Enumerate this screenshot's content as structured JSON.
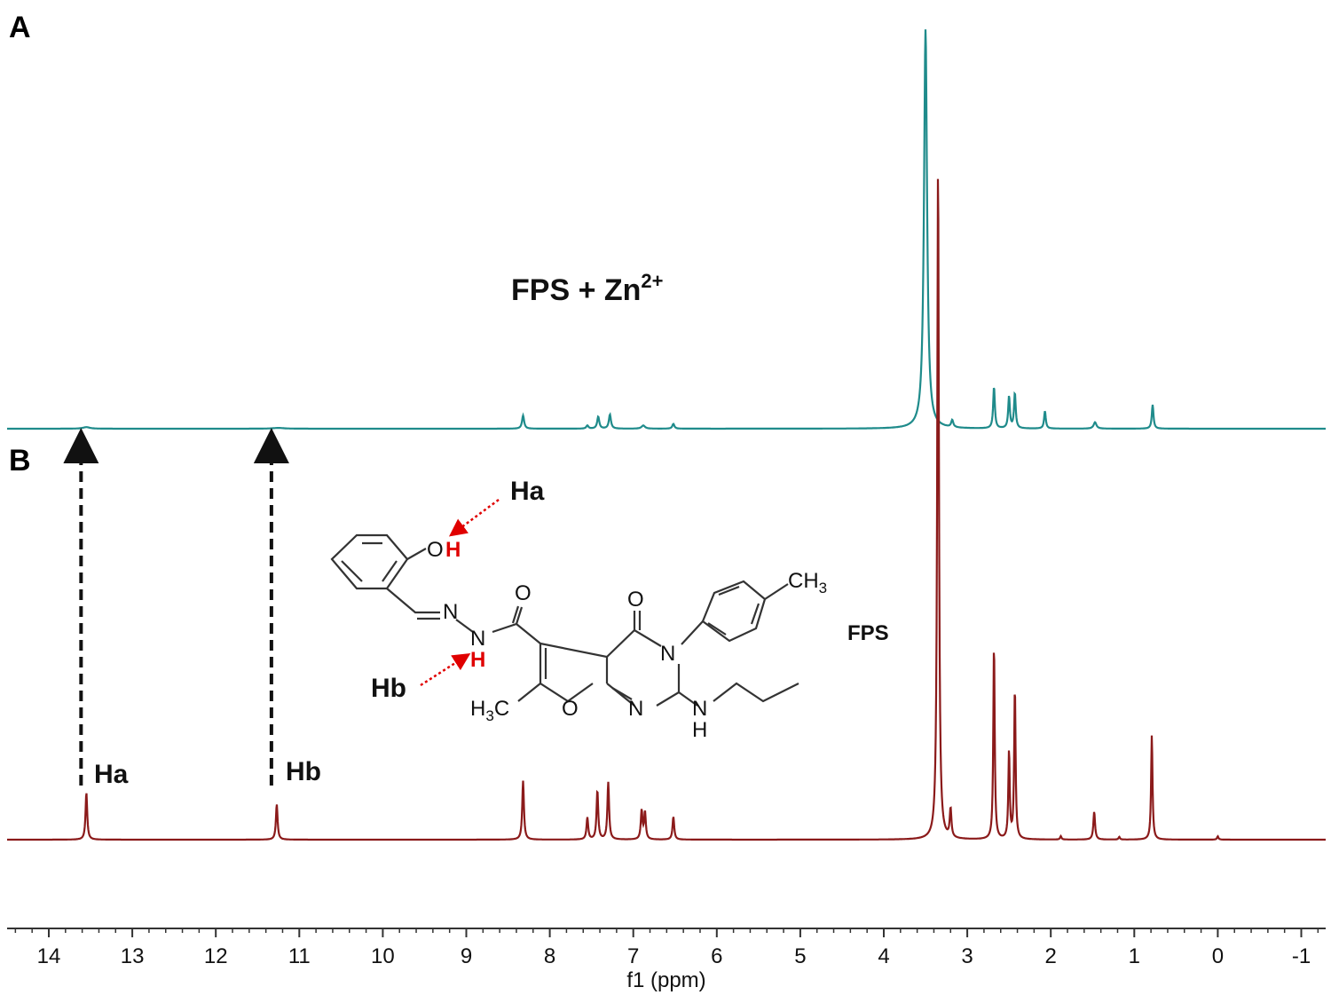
{
  "panels": [
    {
      "label": "A",
      "sample_main": "FPS + Zn",
      "sample_sup": "2+"
    },
    {
      "label": "B",
      "sample_label": "FPS"
    }
  ],
  "annotations": {
    "peak_ha": "Ha",
    "peak_hb": "Hb",
    "struct_ha": "Ha",
    "struct_hb": "Hb"
  },
  "structure_atoms": {
    "o_phenol": "O",
    "h_a": "H",
    "n_imine": "N",
    "n_amide": "N",
    "h_b": "H",
    "o_amide": "O",
    "o_pyrimidinone": "O",
    "n_ring_3": "N",
    "ch3_main": "CH",
    "ch3_sub": "3",
    "n_ring_1": "N",
    "o_furan": "O",
    "h3c_h": "H",
    "h3c_sub": "3",
    "h3c_c": "C",
    "nh_n": "N",
    "nh_h": "H"
  },
  "colors": {
    "spectrum_a": "#1f8b8b",
    "spectrum_b": "#8b1a1a",
    "red_highlight": "#e00000",
    "arrow": "#111111"
  },
  "chart_data": {
    "type": "line",
    "xlabel": "f1 (ppm)",
    "xlim": [
      14.5,
      -1.3
    ],
    "x_reversed": true,
    "xticks": [
      14,
      13,
      12,
      11,
      10,
      9,
      8,
      7,
      6,
      5,
      4,
      3,
      2,
      1,
      0,
      -1
    ],
    "xtick_labels": [
      "14",
      "13",
      "12",
      "11",
      "10",
      "9",
      "8",
      "7",
      "6",
      "5",
      "4",
      "3",
      "2",
      "1",
      "0",
      "-1"
    ],
    "minor_tick_step": 0.2,
    "grid": false,
    "y_axis_shown": false,
    "series": [
      {
        "panel": "A",
        "color": "#1f8b8b",
        "peaks": [
          {
            "ppm": 13.55,
            "height": 0.01,
            "width": 0.05
          },
          {
            "ppm": 11.25,
            "height": 0.005,
            "width": 0.08
          },
          {
            "ppm": 8.32,
            "height": 0.082,
            "width": 0.015
          },
          {
            "ppm": 7.55,
            "height": 0.02,
            "width": 0.015
          },
          {
            "ppm": 7.42,
            "height": 0.075,
            "width": 0.015
          },
          {
            "ppm": 7.28,
            "height": 0.088,
            "width": 0.015
          },
          {
            "ppm": 6.88,
            "height": 0.02,
            "width": 0.025
          },
          {
            "ppm": 6.52,
            "height": 0.03,
            "width": 0.015
          },
          {
            "ppm": 3.5,
            "height": 2.5,
            "width": 0.022
          },
          {
            "ppm": 3.18,
            "height": 0.045,
            "width": 0.015
          },
          {
            "ppm": 2.68,
            "height": 0.26,
            "width": 0.012
          },
          {
            "ppm": 2.5,
            "height": 0.2,
            "width": 0.012
          },
          {
            "ppm": 2.43,
            "height": 0.22,
            "width": 0.012
          },
          {
            "ppm": 2.07,
            "height": 0.11,
            "width": 0.012
          },
          {
            "ppm": 1.47,
            "height": 0.04,
            "width": 0.02
          },
          {
            "ppm": 0.78,
            "height": 0.15,
            "width": 0.012
          }
        ]
      },
      {
        "panel": "B",
        "color": "#8b1a1a",
        "peaks": [
          {
            "ppm": 13.55,
            "height": 0.14,
            "width": 0.012
          },
          {
            "ppm": 11.27,
            "height": 0.105,
            "width": 0.012
          },
          {
            "ppm": 8.32,
            "height": 0.175,
            "width": 0.012
          },
          {
            "ppm": 7.55,
            "height": 0.065,
            "width": 0.012
          },
          {
            "ppm": 7.43,
            "height": 0.145,
            "width": 0.012
          },
          {
            "ppm": 7.3,
            "height": 0.17,
            "width": 0.012
          },
          {
            "ppm": 6.9,
            "height": 0.085,
            "width": 0.012
          },
          {
            "ppm": 6.86,
            "height": 0.08,
            "width": 0.012
          },
          {
            "ppm": 6.52,
            "height": 0.068,
            "width": 0.012
          },
          {
            "ppm": 3.35,
            "height": 2.0,
            "width": 0.012
          },
          {
            "ppm": 3.2,
            "height": 0.085,
            "width": 0.012
          },
          {
            "ppm": 2.68,
            "height": 0.58,
            "width": 0.01
          },
          {
            "ppm": 2.5,
            "height": 0.26,
            "width": 0.01
          },
          {
            "ppm": 2.43,
            "height": 0.45,
            "width": 0.01
          },
          {
            "ppm": 1.88,
            "height": 0.01,
            "width": 0.01
          },
          {
            "ppm": 1.48,
            "height": 0.083,
            "width": 0.012
          },
          {
            "ppm": 1.18,
            "height": 0.008,
            "width": 0.01
          },
          {
            "ppm": 0.79,
            "height": 0.31,
            "width": 0.01
          },
          {
            "ppm": 0.0,
            "height": 0.01,
            "width": 0.01
          }
        ]
      }
    ]
  }
}
